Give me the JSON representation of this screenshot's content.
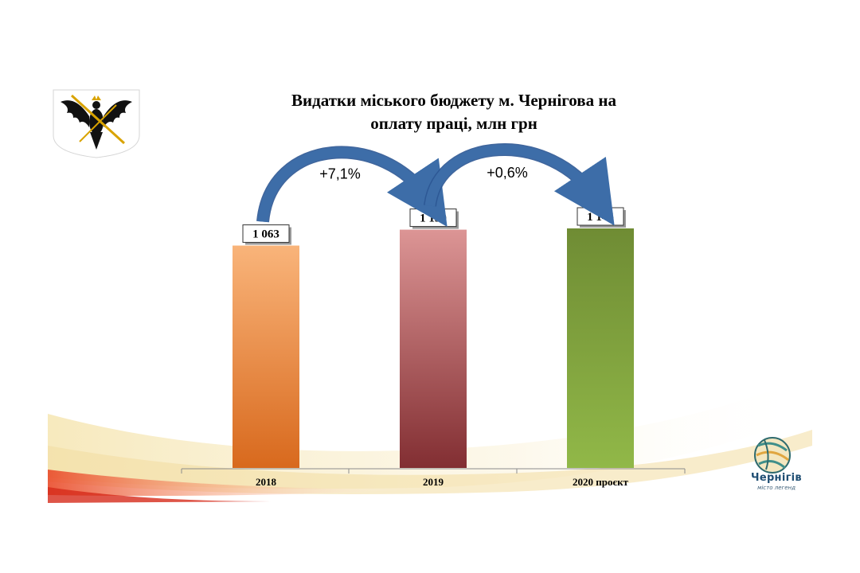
{
  "slide": {
    "title_line1": "Видатки міського бюджету м. Чернігова на",
    "title_line2": "оплату праці, млн грн",
    "coat_of_arms_icon": "eagle-coat-of-arms-icon",
    "brand": {
      "name": "Чернігів",
      "tagline": "місто легенд",
      "logo_icon": "yarn-ball-logo-icon"
    }
  },
  "chart_data": {
    "type": "bar",
    "categories": [
      "2018",
      "2019",
      "2020 проєкт"
    ],
    "values": [
      1063,
      1139,
      1145
    ],
    "data_labels": [
      "1 063",
      "1 139",
      "1 145"
    ],
    "title": "Видатки міського бюджету м. Чернігова на оплату праці, млн грн",
    "ylim": [
      0,
      1160
    ],
    "grid": false,
    "legend": "none",
    "annotations": [
      {
        "text": "+7,1%",
        "from": "2018",
        "to": "2019"
      },
      {
        "text": "+0,6%",
        "from": "2019",
        "to": "2020 проєкт"
      }
    ],
    "colors": [
      {
        "top": "#f9b47a",
        "bottom": "#d8691d"
      },
      {
        "top": "#dc9595",
        "bottom": "#822e32"
      },
      {
        "top": "#6f8c34",
        "bottom": "#91b848"
      }
    ],
    "arrow_color": "#3d6da8"
  }
}
